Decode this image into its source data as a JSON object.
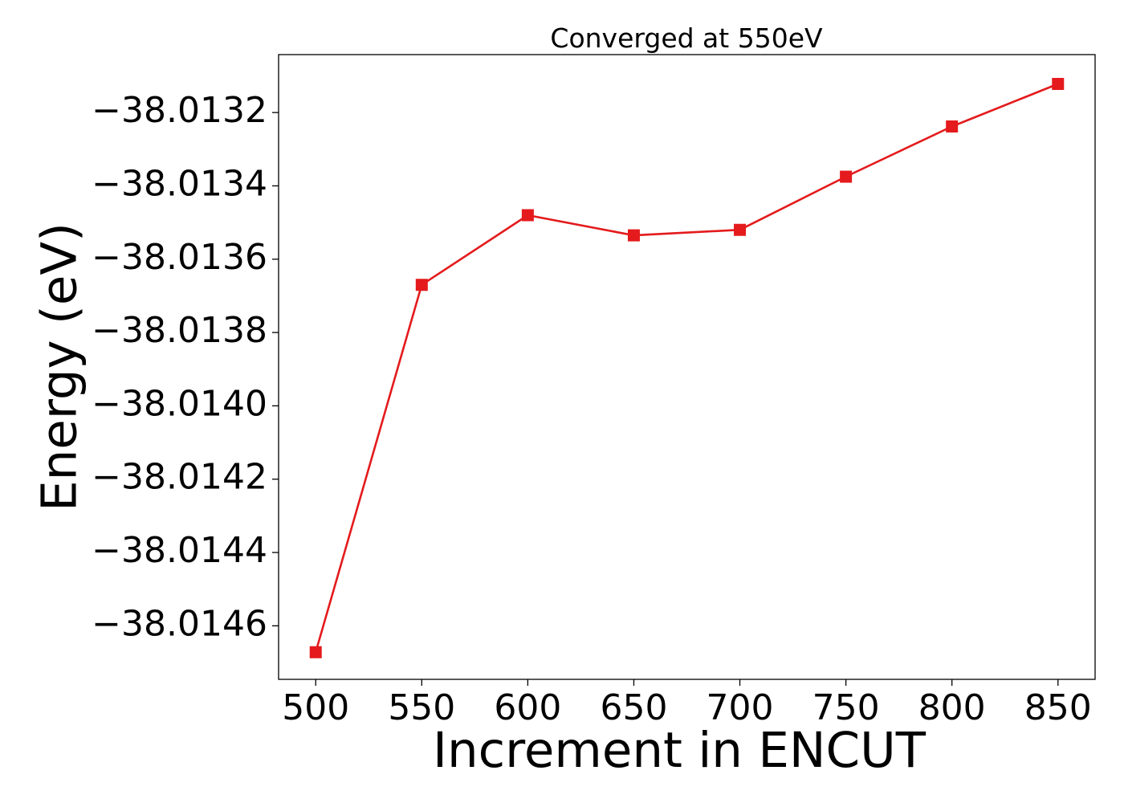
{
  "chart_data": {
    "type": "line",
    "title": "Converged at 550eV",
    "xlabel": "Increment in ENCUT",
    "ylabel": "Energy (eV)",
    "x": [
      500,
      550,
      600,
      650,
      700,
      750,
      800,
      850
    ],
    "series": [
      {
        "values": [
          -38.014672,
          -38.01367,
          -38.01348,
          -38.013535,
          -38.01352,
          -38.013375,
          -38.013238,
          -38.013122
        ],
        "color": "#e41a1c",
        "marker": "square"
      }
    ],
    "xticks": [
      500,
      550,
      600,
      650,
      700,
      750,
      800,
      850
    ],
    "xtick_labels": [
      "500",
      "550",
      "600",
      "650",
      "700",
      "750",
      "800",
      "850"
    ],
    "yticks": [
      -38.0146,
      -38.0144,
      -38.0142,
      -38.014,
      -38.0138,
      -38.0136,
      -38.0134,
      -38.0132
    ],
    "ytick_labels": [
      "−38.0146",
      "−38.0144",
      "−38.0142",
      "−38.0140",
      "−38.0138",
      "−38.0136",
      "−38.0134",
      "−38.0132"
    ],
    "xlim": [
      482.5,
      867.5
    ],
    "ylim": [
      -38.014746,
      -38.013042
    ],
    "grid": false,
    "legend": "none"
  }
}
